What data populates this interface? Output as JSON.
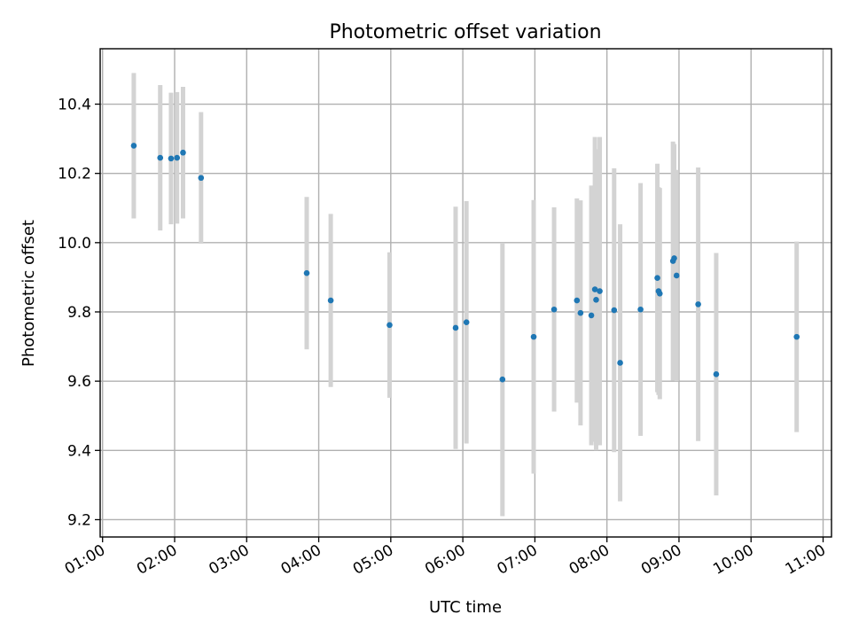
{
  "chart_data": {
    "type": "scatter",
    "title": "Photometric offset variation",
    "xlabel": "UTC time",
    "ylabel": "Photometric offset",
    "xlim": [
      "00:58",
      "11:07"
    ],
    "ylim": [
      9.15,
      10.56
    ],
    "grid": true,
    "x_ticks": [
      "01:00",
      "02:00",
      "03:00",
      "04:00",
      "05:00",
      "06:00",
      "07:00",
      "08:00",
      "09:00",
      "10:00",
      "11:00"
    ],
    "y_ticks": [
      9.2,
      9.4,
      9.6,
      9.8,
      10.0,
      10.2,
      10.4
    ],
    "y_tick_labels": [
      "9.2",
      "9.4",
      "9.6",
      "9.8",
      "10.0",
      "10.2",
      "10.4"
    ],
    "marker_color": "#1f77b4",
    "errorbar_color": "#d3d3d3",
    "series": [
      {
        "points": [
          {
            "x": "01:26",
            "y": 10.28,
            "err": 0.21
          },
          {
            "x": "01:48",
            "y": 10.245,
            "err": 0.21
          },
          {
            "x": "01:57",
            "y": 10.243,
            "err": 0.19
          },
          {
            "x": "02:02",
            "y": 10.245,
            "err": 0.19
          },
          {
            "x": "02:07",
            "y": 10.26,
            "err": 0.19
          },
          {
            "x": "02:22",
            "y": 10.187,
            "err": 0.19
          },
          {
            "x": "03:50",
            "y": 9.912,
            "err": 0.22
          },
          {
            "x": "04:10",
            "y": 9.833,
            "err": 0.25
          },
          {
            "x": "04:59",
            "y": 9.762,
            "err": 0.21
          },
          {
            "x": "05:54",
            "y": 9.754,
            "err": 0.35
          },
          {
            "x": "06:03",
            "y": 9.77,
            "err": 0.35
          },
          {
            "x": "06:33",
            "y": 9.605,
            "err": 0.395
          },
          {
            "x": "06:59",
            "y": 9.728,
            "err": 0.395
          },
          {
            "x": "07:16",
            "y": 9.807,
            "err": 0.295
          },
          {
            "x": "07:35",
            "y": 9.833,
            "err": 0.295
          },
          {
            "x": "07:38",
            "y": 9.797,
            "err": 0.325
          },
          {
            "x": "07:47",
            "y": 9.79,
            "err": 0.375
          },
          {
            "x": "07:50",
            "y": 9.865,
            "err": 0.44
          },
          {
            "x": "07:51",
            "y": 9.835,
            "err": 0.435
          },
          {
            "x": "07:54",
            "y": 9.86,
            "err": 0.445
          },
          {
            "x": "08:06",
            "y": 9.805,
            "err": 0.41
          },
          {
            "x": "08:11",
            "y": 9.653,
            "err": 0.4
          },
          {
            "x": "08:28",
            "y": 9.807,
            "err": 0.365
          },
          {
            "x": "08:42",
            "y": 9.898,
            "err": 0.33
          },
          {
            "x": "08:43",
            "y": 9.86,
            "err": 0.3
          },
          {
            "x": "08:44",
            "y": 9.853,
            "err": 0.305
          },
          {
            "x": "08:55",
            "y": 9.947,
            "err": 0.345
          },
          {
            "x": "08:56",
            "y": 9.955,
            "err": 0.33
          },
          {
            "x": "08:58",
            "y": 9.905,
            "err": 0.305
          },
          {
            "x": "09:16",
            "y": 9.822,
            "err": 0.395
          },
          {
            "x": "09:31",
            "y": 9.62,
            "err": 0.35
          },
          {
            "x": "10:38",
            "y": 9.728,
            "err": 0.275
          }
        ]
      }
    ]
  }
}
